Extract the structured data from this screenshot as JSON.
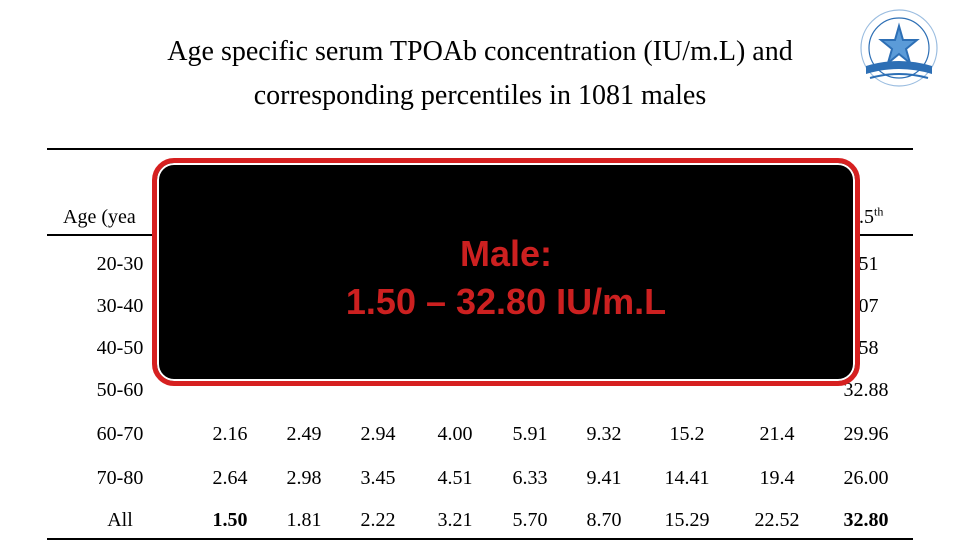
{
  "title": {
    "line1": "Age specific serum TPOAb concentration (IU/m.L) and",
    "line2": "corresponding percentiles in 1081 males"
  },
  "table": {
    "header_first": "Age (yea",
    "header_last": ".5",
    "header_last_sup": "th",
    "rows": [
      {
        "age": "20-30",
        "values": [
          "",
          "",
          "",
          "",
          "",
          "",
          "",
          "",
          ".51"
        ],
        "bold": false
      },
      {
        "age": "30-40",
        "values": [
          "",
          "",
          "",
          "",
          "",
          "",
          "",
          "",
          ".07"
        ],
        "bold": false
      },
      {
        "age": "40-50",
        "values": [
          "",
          "",
          "",
          "",
          "",
          "",
          "",
          "",
          ".58"
        ],
        "bold": false
      },
      {
        "age": "50-60",
        "values": [
          "",
          "",
          "",
          "",
          "",
          "",
          "",
          "",
          "32.88"
        ],
        "bold": false
      },
      {
        "age": "60-70",
        "values": [
          "2.16",
          "2.49",
          "2.94",
          "4.00",
          "5.91",
          "9.32",
          "15.2",
          "21.4",
          "29.96"
        ],
        "bold": false
      },
      {
        "age": "70-80",
        "values": [
          "2.64",
          "2.98",
          "3.45",
          "4.51",
          "6.33",
          "9.41",
          "14.41",
          "19.4",
          "26.00"
        ],
        "bold": false
      },
      {
        "age": "All",
        "values": [
          "1.50",
          "1.81",
          "2.22",
          "3.21",
          "5.70",
          "8.70",
          "15.29",
          "22.52",
          "32.80"
        ],
        "bold_cols": [
          0,
          8
        ]
      }
    ]
  },
  "overlay": {
    "line1": "Male:",
    "line2": "1.50 – 32.80  IU/m.L",
    "border_color": "#d62020",
    "text_color": "#cc2020"
  },
  "logo_icon": "university-emblem-icon"
}
